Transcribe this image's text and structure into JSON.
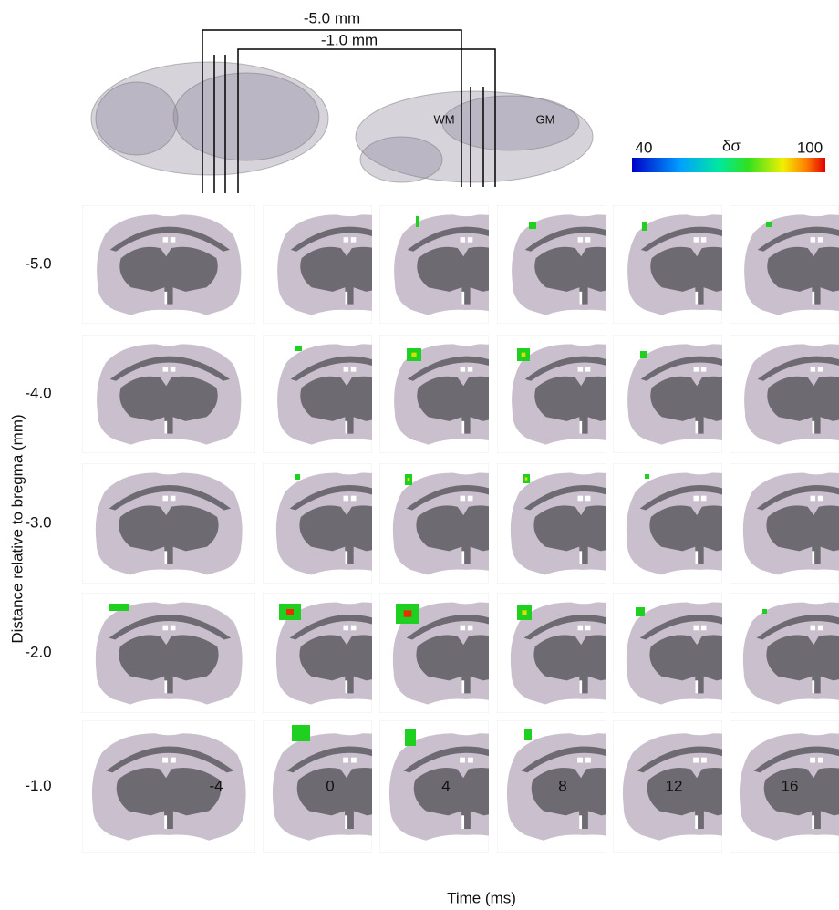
{
  "brain_views": {
    "distance_labels": [
      "-5.0 mm",
      "-1.0 mm"
    ],
    "region_labels": [
      "WM",
      "GM"
    ]
  },
  "colorbar": {
    "min_label": "40",
    "symbol": "δσ",
    "max_label": "100"
  },
  "row_axis_label": "Distance relative to bregma (mm)",
  "rows": [
    "-5.0",
    "-4.0",
    "-3.0",
    "-2.0",
    "-1.0"
  ],
  "columns": [
    "-4",
    "0",
    "4",
    "8",
    "12",
    "16"
  ],
  "column_axis_label": "Time (ms)"
}
